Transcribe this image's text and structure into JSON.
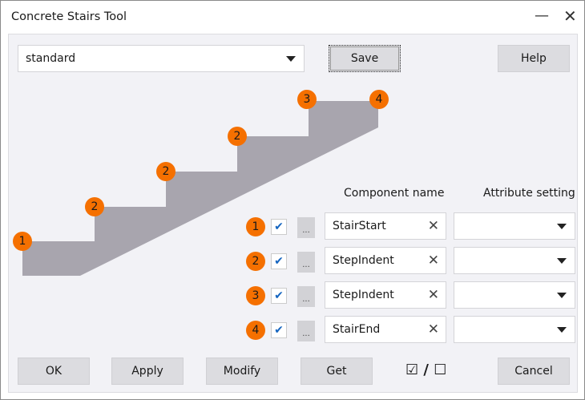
{
  "window": {
    "title": "Concrete Stairs Tool",
    "minimize_icon": "minimize-icon",
    "close_icon": "close-icon"
  },
  "top": {
    "preset": "standard",
    "save": "Save",
    "help": "Help"
  },
  "diagram": {
    "badges": [
      "1",
      "2",
      "2",
      "2",
      "3",
      "4"
    ],
    "fill": "#a8a5ae",
    "badge_color": "#f57000"
  },
  "headers": {
    "component": "Component name",
    "attribute": "Attribute setting"
  },
  "rows": [
    {
      "num": "1",
      "checked": true,
      "dots": "...",
      "name": "StairStart",
      "attribute": ""
    },
    {
      "num": "2",
      "checked": true,
      "dots": "...",
      "name": "StepIndent",
      "attribute": ""
    },
    {
      "num": "3",
      "checked": true,
      "dots": "...",
      "name": "StepIndent",
      "attribute": ""
    },
    {
      "num": "4",
      "checked": true,
      "dots": "...",
      "name": "StairEnd",
      "attribute": ""
    }
  ],
  "bottom": {
    "ok": "OK",
    "apply": "Apply",
    "modify": "Modify",
    "get": "Get",
    "toggle_all": "☑ / ☐",
    "cancel": "Cancel"
  }
}
